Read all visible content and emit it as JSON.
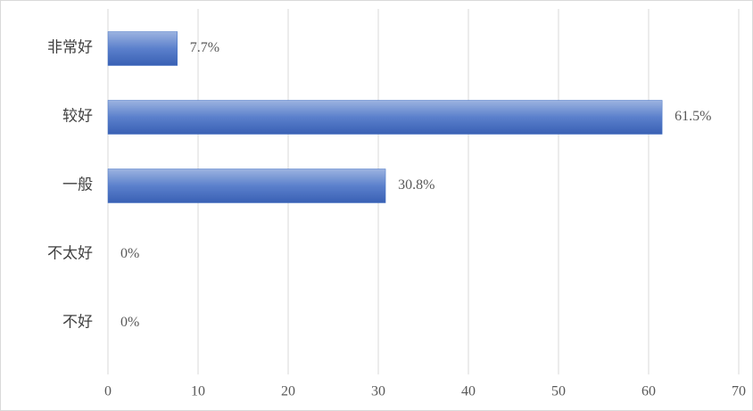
{
  "chart_data": {
    "type": "hbar",
    "categories": [
      "非常好",
      "较好",
      "一般",
      "不太好",
      "不好"
    ],
    "values": [
      7.7,
      61.5,
      30.8,
      0,
      0
    ],
    "value_labels": [
      "7.7%",
      "61.5%",
      "30.8%",
      "0%",
      "0%"
    ],
    "color": "#4472c4",
    "xlim": [
      0,
      70
    ],
    "xticks": [
      0,
      10,
      20,
      30,
      40,
      50,
      60,
      70
    ],
    "grid": true
  }
}
